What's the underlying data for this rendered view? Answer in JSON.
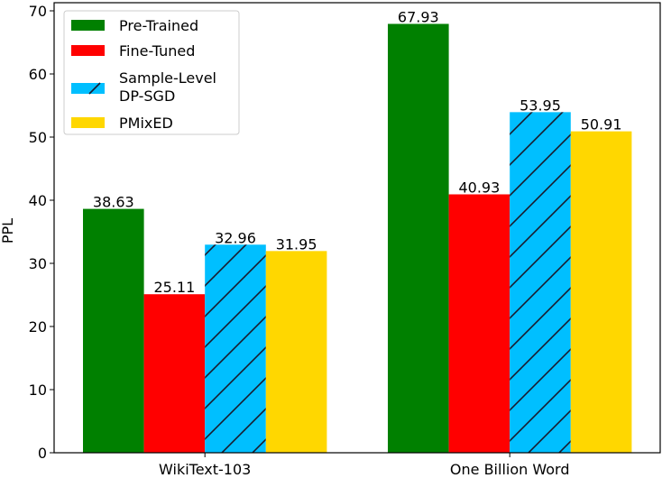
{
  "chart_data": {
    "type": "bar",
    "title": "",
    "xlabel": "",
    "ylabel": "PPL",
    "ylim": [
      0,
      70
    ],
    "yticks": [
      0,
      10,
      20,
      30,
      40,
      50,
      60,
      70
    ],
    "categories": [
      "WikiText-103",
      "One Billion Word"
    ],
    "series": [
      {
        "name": "Pre-Trained",
        "color": "#008000",
        "hatch": false,
        "values": [
          38.63,
          67.93
        ],
        "labels": [
          "38.63",
          "67.93"
        ]
      },
      {
        "name": "Fine-Tuned",
        "color": "#ff0000",
        "hatch": false,
        "values": [
          25.11,
          40.93
        ],
        "labels": [
          "25.11",
          "40.93"
        ]
      },
      {
        "name": "Sample-Level DP-SGD",
        "name_lines": [
          "Sample-Level",
          "DP-SGD"
        ],
        "color": "#00bfff",
        "hatch": true,
        "values": [
          32.96,
          53.95
        ],
        "labels": [
          "32.96",
          "53.95"
        ]
      },
      {
        "name": "PMixED",
        "color": "#ffd700",
        "hatch": false,
        "values": [
          31.95,
          50.91
        ],
        "labels": [
          "31.95",
          "50.91"
        ]
      }
    ],
    "grid": false,
    "legend": "top-left"
  }
}
